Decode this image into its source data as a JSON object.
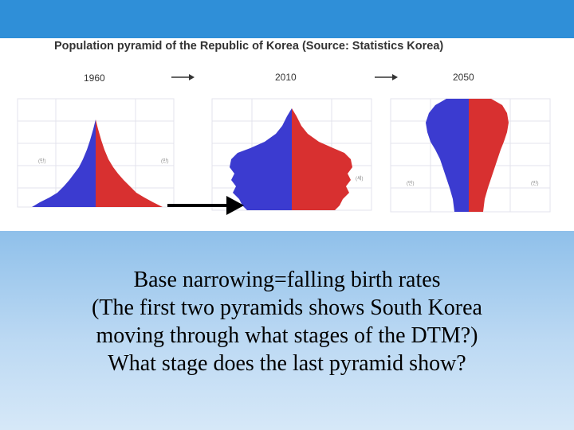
{
  "figure": {
    "title": "Population pyramid of the Republic of Korea (Source: Statistics Korea)",
    "years": [
      "1960",
      "2010",
      "2050"
    ],
    "colors": {
      "male": "#3b3bd0",
      "female": "#d83030",
      "grid": "#e3e3ec"
    }
  },
  "caption": {
    "lines": [
      "Base narrowing=falling birth rates",
      "(The first two pyramids shows South Korea",
      "moving through what stages of the DTM?)",
      "What stage does the last pyramid show?"
    ]
  }
}
